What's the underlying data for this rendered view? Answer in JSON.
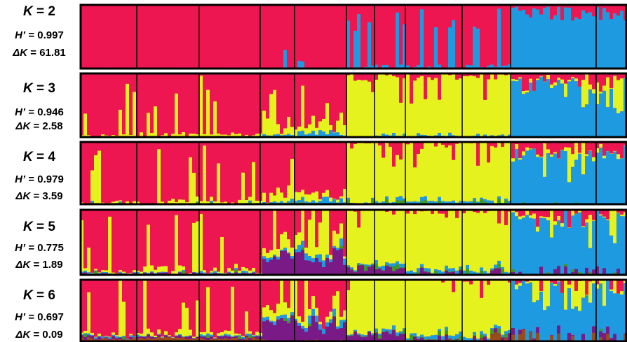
{
  "chart_data": {
    "type": "structure-barplot",
    "colors": {
      "red": "#ee1650",
      "blue": "#1e9be0",
      "yellow": "#e6f21d",
      "green": "#3d9a2a",
      "purple": "#7a1a86",
      "brown": "#9a4b1a"
    },
    "population_boundaries": [
      195,
      284,
      371,
      420,
      494,
      534,
      578,
      659,
      728,
      850
    ],
    "panels": [
      {
        "k_prefix": "K",
        "k_value": " = 2",
        "h_prefix": "H’",
        "h_value": " = 0.997",
        "d_prefix": "ΔK",
        "d_value": " = 61.81",
        "K": 2,
        "H": 0.997,
        "deltaK": 61.81,
        "clusters": [
          "red",
          "blue"
        ]
      },
      {
        "k_prefix": "K",
        "k_value": " = 3",
        "h_prefix": "H’",
        "h_value": " = 0.946",
        "d_prefix": "ΔK",
        "d_value": " = 2.58",
        "K": 3,
        "H": 0.946,
        "deltaK": 2.58,
        "clusters": [
          "red",
          "yellow",
          "blue"
        ]
      },
      {
        "k_prefix": "K",
        "k_value": " = 4",
        "h_prefix": "H’",
        "h_value": " = 0.979",
        "d_prefix": "ΔK",
        "d_value": " = 3.59",
        "K": 4,
        "H": 0.979,
        "deltaK": 3.59,
        "clusters": [
          "red",
          "yellow",
          "blue",
          "green"
        ]
      },
      {
        "k_prefix": "K",
        "k_value": " = 5",
        "h_prefix": "H’",
        "h_value": " = 0.775",
        "d_prefix": "ΔK",
        "d_value": " = 1.89",
        "K": 5,
        "H": 0.775,
        "deltaK": 1.89,
        "clusters": [
          "red",
          "yellow",
          "blue",
          "green",
          "purple"
        ]
      },
      {
        "k_prefix": "K",
        "k_value": " = 6",
        "h_prefix": "H’",
        "h_value": " = 0.697",
        "d_prefix": "ΔK",
        "d_value": " = 0.09",
        "K": 6,
        "H": 0.697,
        "deltaK": 0.09,
        "clusters": [
          "red",
          "yellow",
          "blue",
          "green",
          "purple",
          "brown"
        ]
      }
    ]
  }
}
